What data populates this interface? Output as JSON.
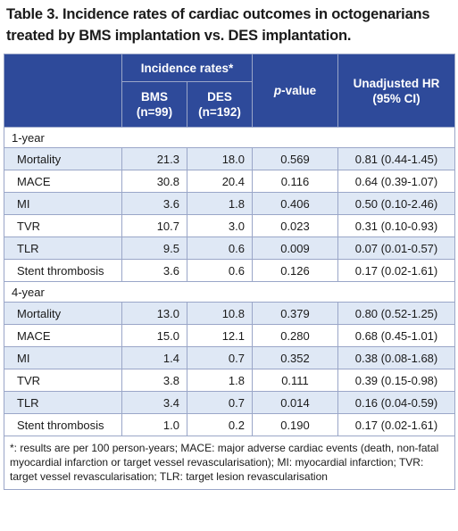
{
  "title_line1": "Table 3. Incidence rates of cardiac outcomes in octogenarians",
  "title_line2": "treated by BMS implantation vs. DES implantation.",
  "header": {
    "incidence": "Incidence rates*",
    "bms": "BMS",
    "bms_n": "(n=99)",
    "des": "DES",
    "des_n": "(n=192)",
    "pvalue_p": "p",
    "pvalue_rest": "-value",
    "hr_line1": "Unadjusted HR",
    "hr_line2": "(95% CI)"
  },
  "sections": [
    {
      "label": "1-year",
      "rows": [
        {
          "name": "Mortality",
          "bms": "21.3",
          "des": "18.0",
          "p": "0.569",
          "hr": "0.81 (0.44-1.45)"
        },
        {
          "name": "MACE",
          "bms": "30.8",
          "des": "20.4",
          "p": "0.116",
          "hr": "0.64 (0.39-1.07)"
        },
        {
          "name": "MI",
          "bms": "3.6",
          "des": "1.8",
          "p": "0.406",
          "hr": "0.50 (0.10-2.46)"
        },
        {
          "name": "TVR",
          "bms": "10.7",
          "des": "3.0",
          "p": "0.023",
          "hr": "0.31 (0.10-0.93)"
        },
        {
          "name": "TLR",
          "bms": "9.5",
          "des": "0.6",
          "p": "0.009",
          "hr": "0.07 (0.01-0.57)"
        },
        {
          "name": "Stent thrombosis",
          "bms": "3.6",
          "des": "0.6",
          "p": "0.126",
          "hr": "0.17 (0.02-1.61)"
        }
      ]
    },
    {
      "label": "4-year",
      "rows": [
        {
          "name": "Mortality",
          "bms": "13.0",
          "des": "10.8",
          "p": "0.379",
          "hr": "0.80 (0.52-1.25)"
        },
        {
          "name": "MACE",
          "bms": "15.0",
          "des": "12.1",
          "p": "0.280",
          "hr": "0.68 (0.45-1.01)"
        },
        {
          "name": "MI",
          "bms": "1.4",
          "des": "0.7",
          "p": "0.352",
          "hr": "0.38 (0.08-1.68)"
        },
        {
          "name": "TVR",
          "bms": "3.8",
          "des": "1.8",
          "p": "0.111",
          "hr": "0.39 (0.15-0.98)"
        },
        {
          "name": "TLR",
          "bms": "3.4",
          "des": "0.7",
          "p": "0.014",
          "hr": "0.16 (0.04-0.59)"
        },
        {
          "name": "Stent thrombosis",
          "bms": "1.0",
          "des": "0.2",
          "p": "0.190",
          "hr": "0.17 (0.02-1.61)"
        }
      ]
    }
  ],
  "footnote": "*: results are per 100 person-years; MACE: major adverse cardiac events (death, non-fatal myocardial infarction or target vessel revascularisation); MI: myocardial infarction; TVR: target vessel revascularisation; TLR: target lesion revascularisation",
  "colors": {
    "header_bg": "#2e4a9a",
    "row_shade": "#dfe8f5",
    "border": "#9aa6c8"
  }
}
